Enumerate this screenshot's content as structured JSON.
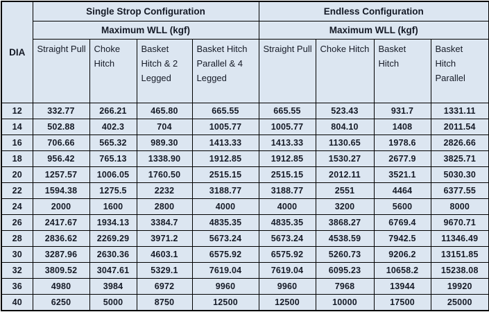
{
  "colors": {
    "cell_background": "#dce6f1",
    "border": "#000000",
    "text": "#151a26"
  },
  "table": {
    "dia_header": "DIA",
    "sections": [
      {
        "title": "Single Strop Configuration",
        "subtitle": "Maximum WLL (kgf)",
        "columns": [
          "Straight Pull",
          "Choke Hitch",
          "Basket Hitch & 2 Legged",
          "Basket Hitch Parallel & 4 Legged"
        ]
      },
      {
        "title": "Endless Configuration",
        "subtitle": "Maximum WLL (kgf)",
        "columns": [
          "Straight Pull",
          "Choke Hitch",
          "Basket Hitch",
          "Basket Hitch Parallel"
        ]
      }
    ],
    "rows": [
      {
        "dia": "12",
        "values": [
          "332.77",
          "266.21",
          "465.80",
          "665.55",
          "665.55",
          "523.43",
          "931.7",
          "1331.11"
        ]
      },
      {
        "dia": "14",
        "values": [
          "502.88",
          "402.3",
          "704",
          "1005.77",
          "1005.77",
          "804.10",
          "1408",
          "2011.54"
        ]
      },
      {
        "dia": "16",
        "values": [
          "706.66",
          "565.32",
          "989.30",
          "1413.33",
          "1413.33",
          "1130.65",
          "1978.6",
          "2826.66"
        ]
      },
      {
        "dia": "18",
        "values": [
          "956.42",
          "765.13",
          "1338.90",
          "1912.85",
          "1912.85",
          "1530.27",
          "2677.9",
          "3825.71"
        ]
      },
      {
        "dia": "20",
        "values": [
          "1257.57",
          "1006.05",
          "1760.50",
          "2515.15",
          "2515.15",
          "2012.11",
          "3521.1",
          "5030.30"
        ]
      },
      {
        "dia": "22",
        "values": [
          "1594.38",
          "1275.5",
          "2232",
          "3188.77",
          "3188.77",
          "2551",
          "4464",
          "6377.55"
        ]
      },
      {
        "dia": "24",
        "values": [
          "2000",
          "1600",
          "2800",
          "4000",
          "4000",
          "3200",
          "5600",
          "8000"
        ]
      },
      {
        "dia": "26",
        "values": [
          "2417.67",
          "1934.13",
          "3384.7",
          "4835.35",
          "4835.35",
          "3868.27",
          "6769.4",
          "9670.71"
        ]
      },
      {
        "dia": "28",
        "values": [
          "2836.62",
          "2269.29",
          "3971.2",
          "5673.24",
          "5673.24",
          "4538.59",
          "7942.5",
          "11346.49"
        ]
      },
      {
        "dia": "30",
        "values": [
          "3287.96",
          "2630.36",
          "4603.1",
          "6575.92",
          "6575.92",
          "5260.73",
          "9206.2",
          "13151.85"
        ]
      },
      {
        "dia": "32",
        "values": [
          "3809.52",
          "3047.61",
          "5329.1",
          "7619.04",
          "7619.04",
          "6095.23",
          "10658.2",
          "15238.08"
        ]
      },
      {
        "dia": "36",
        "values": [
          "4980",
          "3984",
          "6972",
          "9960",
          "9960",
          "7968",
          "13944",
          "19920"
        ]
      },
      {
        "dia": "40",
        "values": [
          "6250",
          "5000",
          "8750",
          "12500",
          "12500",
          "10000",
          "17500",
          "25000"
        ]
      }
    ]
  }
}
